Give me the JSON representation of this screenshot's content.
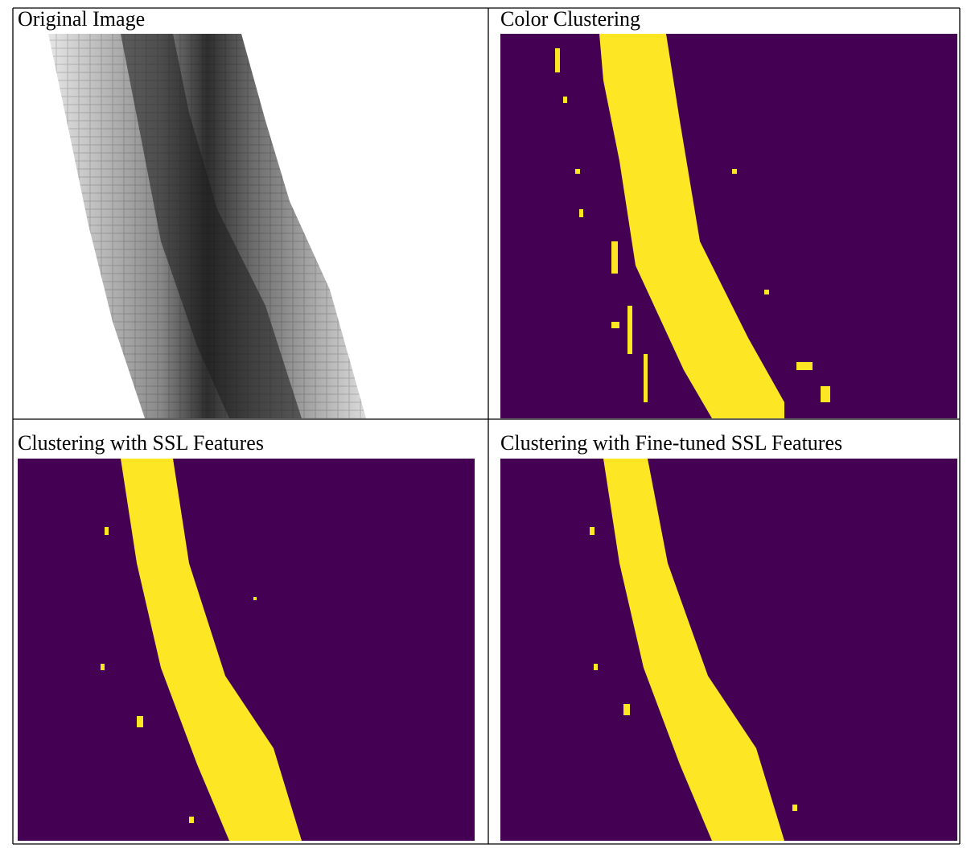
{
  "panels": [
    {
      "title": "Original Image"
    },
    {
      "title": "Color Clustering"
    },
    {
      "title": "Clustering with SSL Features"
    },
    {
      "title": "Clustering with Fine-tuned SSL Features"
    }
  ]
}
